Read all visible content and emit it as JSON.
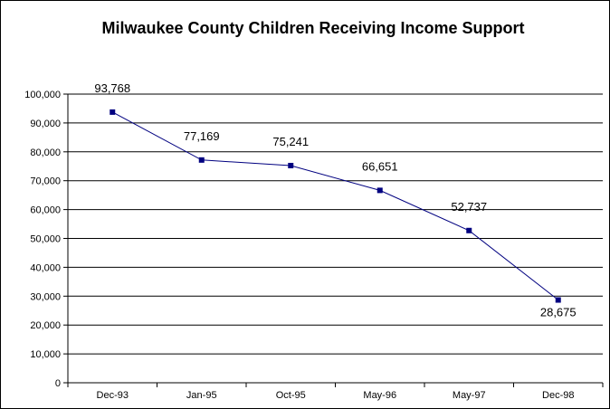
{
  "chart_data": {
    "type": "line",
    "title": "Milwaukee County Children Receiving Income Support",
    "xlabel": "",
    "ylabel": "",
    "categories": [
      "Dec-93",
      "Jan-95",
      "Oct-95",
      "May-96",
      "May-97",
      "Dec-98"
    ],
    "series": [
      {
        "values": [
          93768,
          77169,
          75241,
          66651,
          52737,
          28675
        ],
        "color": "#000080",
        "marker": "square"
      }
    ],
    "data_labels": [
      "93,768",
      "77,169",
      "75,241",
      "66,651",
      "52,737",
      "28,675"
    ],
    "y_ticks": [
      "0",
      "10,000",
      "20,000",
      "30,000",
      "40,000",
      "50,000",
      "60,000",
      "70,000",
      "80,000",
      "90,000",
      "100,000"
    ],
    "ylim": [
      0,
      100000
    ],
    "ystep": 10000,
    "grid": "horizontal",
    "legend": "none",
    "colors": {
      "line": "#000080",
      "grid": "#000000",
      "background": "#ffffff"
    }
  }
}
